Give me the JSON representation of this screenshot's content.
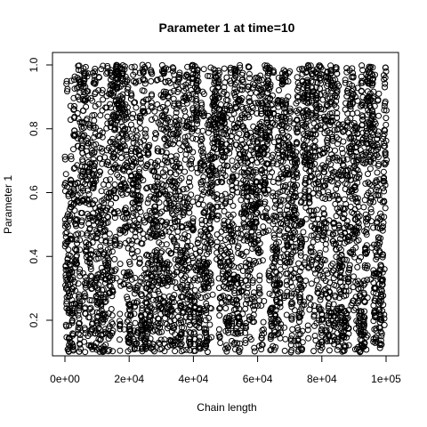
{
  "chart_data": {
    "type": "scatter",
    "title": "Parameter 1 at time=10",
    "xlabel": "Chain length",
    "ylabel": "Parameter 1",
    "xlim": [
      0,
      100000
    ],
    "ylim": [
      0.1,
      1.0
    ],
    "x_ticks": [
      0,
      20000,
      40000,
      60000,
      80000,
      100000
    ],
    "x_tick_labels": [
      "0e+00",
      "2e+04",
      "4e+04",
      "6e+04",
      "8e+04",
      "1e+05"
    ],
    "y_ticks": [
      0.2,
      0.4,
      0.6,
      0.8,
      1.0
    ],
    "y_tick_labels": [
      "0.2",
      "0.4",
      "0.6",
      "0.8",
      "1.0"
    ],
    "grid": false,
    "marker": "open-circle",
    "marker_color": "#000000",
    "n_points": 100000,
    "series_description": "Dense MCMC trace of Parameter 1 over chain iterations; values wander between about 0.1 and 1.0 with near-uniform coverage",
    "sample_points": [
      [
        2000,
        0.95
      ],
      [
        3000,
        0.32
      ],
      [
        6000,
        0.58
      ],
      [
        9000,
        0.12
      ],
      [
        15000,
        0.71
      ],
      [
        21000,
        0.45
      ],
      [
        28000,
        0.18
      ],
      [
        34000,
        0.97
      ],
      [
        39000,
        0.62
      ],
      [
        46000,
        0.28
      ],
      [
        52000,
        0.83
      ],
      [
        58000,
        0.14
      ],
      [
        63000,
        0.55
      ],
      [
        69000,
        0.38
      ],
      [
        74000,
        0.91
      ],
      [
        80000,
        0.22
      ],
      [
        86000,
        0.67
      ],
      [
        91000,
        0.11
      ],
      [
        96000,
        0.49
      ],
      [
        99500,
        0.36
      ]
    ]
  }
}
